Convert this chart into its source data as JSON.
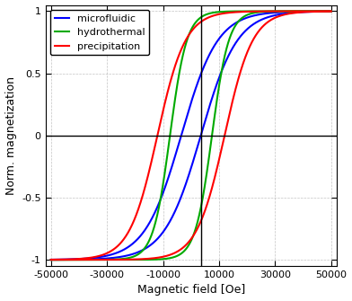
{
  "title": "",
  "xlabel": "Magnetic field [Oe]",
  "ylabel": "Norm. magnetization",
  "xlim": [
    -52000,
    52000
  ],
  "ylim": [
    -1.05,
    1.05
  ],
  "xticks": [
    -50000,
    -30000,
    -10000,
    10000,
    30000,
    50000
  ],
  "xtick_labels": [
    "-50000",
    "-30000",
    "-10000",
    "10000",
    "30000",
    "50000"
  ],
  "yticks": [
    -1,
    -0.5,
    0,
    0.5,
    1
  ],
  "ytick_labels": [
    "-1",
    "-0.5",
    "0",
    "0.5",
    "1"
  ],
  "vline_x": 3500,
  "hline_y": 0,
  "legend_labels": [
    "microfluidic",
    "hydrothermal",
    "precipitation"
  ],
  "legend_colors": [
    "#0000ff",
    "#00aa00",
    "#ff0000"
  ],
  "background_color": "#ffffff",
  "grid_color": "#aaaaaa",
  "curves": [
    {
      "color": "#0000ff",
      "Hc": 3500,
      "a": 13000,
      "remanence": 0.25
    },
    {
      "color": "#00aa00",
      "Hc": 7500,
      "a": 6000,
      "remanence": 0.1
    },
    {
      "color": "#ff0000",
      "Hc": 12000,
      "a": 10000,
      "remanence": 0.6
    }
  ]
}
